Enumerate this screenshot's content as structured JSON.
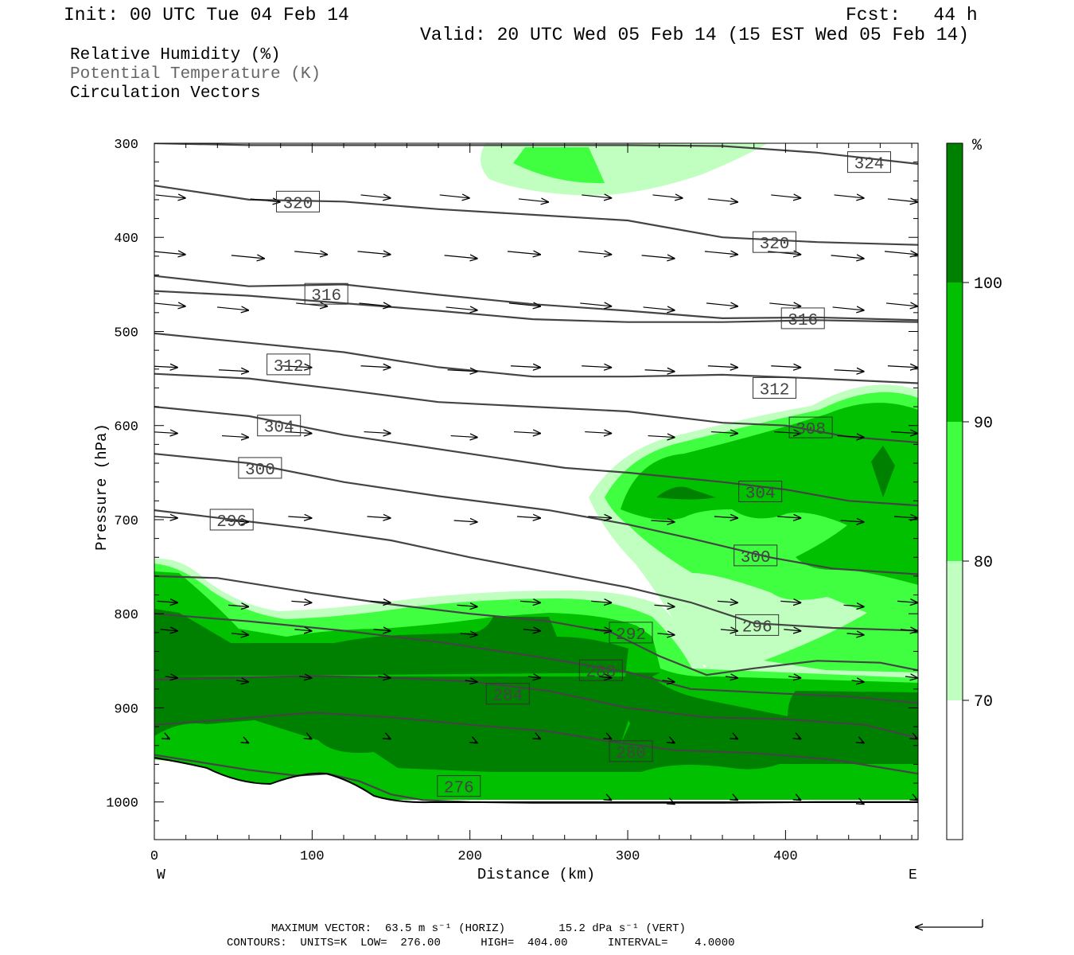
{
  "header": {
    "init": "Init: 00 UTC Tue 04 Feb 14",
    "fcst": "Fcst:   44 h",
    "valid": "Valid: 20 UTC Wed 05 Feb 14 (15 EST Wed 05 Feb 14)"
  },
  "fields": [
    "Relative Humidity (%)",
    "Potential Temperature (K)",
    "Circulation Vectors"
  ],
  "footer": {
    "max_vector": "MAXIMUM VECTOR:  63.5 m s⁻¹ (HORIZ)        15.2 dPa s⁻¹ (VERT)",
    "contours": "CONTOURS:  UNITS=K  LOW=  276.00      HIGH=  404.00      INTERVAL=    4.0000"
  },
  "colors": {
    "rh_70_80": "#c0ffc0",
    "rh_80_90": "#40ff40",
    "rh_90_100": "#00c000",
    "rh_100": "#008000",
    "theta_line": "#444444"
  },
  "chart_data": {
    "type": "cross-section",
    "xlabel": "Distance (km)",
    "ylabel": "Pressure (hPa)",
    "xlim": [
      0,
      484
    ],
    "ylim": [
      1040,
      300
    ],
    "x_ticks": [
      0,
      100,
      200,
      300,
      400
    ],
    "y_ticks": [
      300,
      400,
      500,
      600,
      700,
      800,
      900,
      1000
    ],
    "x_end_labels": {
      "left": "W",
      "right": "E"
    },
    "colorbar": {
      "unit": "%",
      "levels": [
        70,
        80,
        90,
        100
      ]
    },
    "theta_contours": [
      {
        "label": "276",
        "x": [
          0,
          30,
          60,
          90,
          110,
          130,
          150,
          170,
          200,
          240,
          300,
          360,
          420,
          484
        ],
        "p": [
          950,
          958,
          966,
          972,
          970,
          978,
          992,
          998,
          1000,
          1001,
          1001,
          1001,
          1000,
          1000
        ],
        "label_at": [
          193,
          983
        ]
      },
      {
        "label": "280",
        "x": [
          0,
          50,
          100,
          150,
          200,
          250,
          290,
          330,
          380,
          430,
          484
        ],
        "p": [
          918,
          912,
          905,
          910,
          918,
          925,
          936,
          945,
          948,
          955,
          970
        ],
        "label_at": [
          302,
          938
        ]
      },
      {
        "label": "284",
        "x": [
          0,
          50,
          100,
          150,
          200,
          250,
          300,
          350,
          400,
          450,
          484
        ],
        "p": [
          870,
          868,
          866,
          868,
          872,
          882,
          900,
          910,
          912,
          918,
          932
        ],
        "label_at": [
          223,
          878
        ]
      },
      {
        "label": "288",
        "x": [
          0,
          60,
          120,
          180,
          240,
          300,
          340,
          400,
          440,
          484
        ],
        "p": [
          800,
          808,
          818,
          830,
          845,
          862,
          880,
          885,
          888,
          895
        ],
        "label_at": [
          283,
          847
        ]
      },
      {
        "label": "292",
        "x": [
          0,
          40,
          100,
          150,
          200,
          250,
          290,
          320,
          350,
          380,
          420,
          460,
          484
        ],
        "p": [
          760,
          762,
          778,
          790,
          800,
          808,
          820,
          845,
          865,
          858,
          850,
          852,
          860
        ],
        "label_at": [
          302,
          792
        ]
      },
      {
        "label": "296",
        "x": [
          0,
          50,
          100,
          150,
          200,
          250,
          300,
          340,
          380,
          430,
          484
        ],
        "p": [
          690,
          700,
          710,
          722,
          740,
          756,
          772,
          788,
          810,
          815,
          818
        ],
        "label_at": [
          48,
          700
        ]
      },
      {
        "label": "300",
        "x": [
          0,
          60,
          120,
          180,
          250,
          300,
          340,
          390,
          430,
          484
        ],
        "p": [
          630,
          640,
          660,
          675,
          690,
          705,
          720,
          740,
          752,
          758
        ],
        "label_at": [
          66,
          588
        ]
      },
      {
        "label": "304",
        "x": [
          0,
          60,
          120,
          200,
          260,
          300,
          360,
          400,
          440,
          484
        ],
        "p": [
          580,
          590,
          610,
          630,
          645,
          650,
          660,
          668,
          680,
          685
        ],
        "label_at": [
          78,
          533
        ]
      },
      {
        "label": "308",
        "x": [
          0,
          60,
          120,
          180,
          240,
          300,
          360,
          400,
          440,
          484
        ],
        "p": [
          545,
          550,
          562,
          575,
          580,
          585,
          597,
          600,
          612,
          618
        ],
        "label_at": [
          415,
          535
        ]
      },
      {
        "label": "312",
        "x": [
          0,
          60,
          120,
          180,
          240,
          300,
          360,
          420,
          484
        ],
        "p": [
          502,
          512,
          522,
          538,
          548,
          548,
          546,
          550,
          555
        ],
        "label_at": [
          84,
          437
        ]
      },
      {
        "label": "312b",
        "x": [
          0,
          60,
          120,
          180,
          240,
          300,
          360,
          420,
          484
        ],
        "p": [
          457,
          462,
          470,
          478,
          487,
          490,
          490,
          488,
          490
        ],
        "label_at": [
          392,
          466
        ]
      },
      {
        "label": "316",
        "x": [
          0,
          60,
          120,
          180,
          240,
          300,
          360,
          420,
          484
        ],
        "p": [
          441,
          452,
          450,
          461,
          471,
          478,
          486,
          485,
          488
        ],
        "label_at": [
          108,
          360
        ]
      },
      {
        "label": "320",
        "x": [
          0,
          60,
          120,
          180,
          240,
          300,
          360,
          420,
          484
        ],
        "p": [
          345,
          360,
          362,
          370,
          376,
          382,
          400,
          405,
          408
        ],
        "label_at": [
          90,
          253
        ]
      },
      {
        "label": "324",
        "x": [
          0,
          60,
          120,
          180,
          240,
          300,
          360,
          420,
          484
        ],
        "p": [
          300,
          302,
          302,
          302,
          302,
          302,
          303,
          310,
          322
        ],
        "label_at": [
          448,
          202
        ]
      }
    ],
    "contour_label_boxes": [
      {
        "text": "324",
        "x": 453,
        "p": 320
      },
      {
        "text": "320",
        "x": 91,
        "p": 362
      },
      {
        "text": "320",
        "x": 393,
        "p": 405
      },
      {
        "text": "316",
        "x": 109,
        "p": 460
      },
      {
        "text": "316",
        "x": 411,
        "p": 486
      },
      {
        "text": "312",
        "x": 85,
        "p": 535
      },
      {
        "text": "312",
        "x": 393,
        "p": 560
      },
      {
        "text": "308",
        "x": 416,
        "p": 602
      },
      {
        "text": "304",
        "x": 79,
        "p": 600
      },
      {
        "text": "304",
        "x": 384,
        "p": 670
      },
      {
        "text": "300",
        "x": 67,
        "p": 645
      },
      {
        "text": "300",
        "x": 381,
        "p": 738
      },
      {
        "text": "296",
        "x": 49,
        "p": 700
      },
      {
        "text": "296",
        "x": 382,
        "p": 812
      },
      {
        "text": "292",
        "x": 302,
        "p": 820
      },
      {
        "text": "288",
        "x": 283,
        "p": 860
      },
      {
        "text": "284",
        "x": 224,
        "p": 885
      },
      {
        "text": "280",
        "x": 302,
        "p": 946
      },
      {
        "text": "276",
        "x": 193,
        "p": 983
      }
    ]
  }
}
